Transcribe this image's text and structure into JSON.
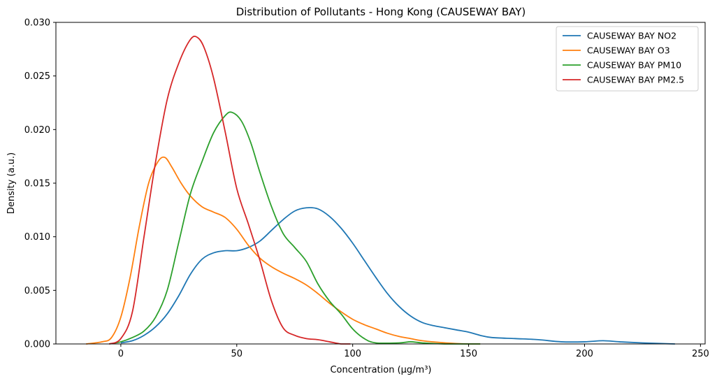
{
  "chart_data": {
    "type": "line",
    "title": "Distribution of Pollutants - Hong Kong (CAUSEWAY BAY)",
    "xlabel": "Concentration (µg/m³)",
    "ylabel": "Density (a.u.)",
    "xlim": [
      -28,
      252
    ],
    "ylim": [
      0,
      0.03
    ],
    "xticks": [
      0,
      50,
      100,
      150,
      200,
      250
    ],
    "xtick_labels": [
      "0",
      "50",
      "100",
      "150",
      "200",
      "250"
    ],
    "yticks": [
      0,
      0.005,
      0.01,
      0.015,
      0.02,
      0.025,
      0.03
    ],
    "ytick_labels": [
      "0.000",
      "0.005",
      "0.010",
      "0.015",
      "0.020",
      "0.025",
      "0.030"
    ],
    "grid": false,
    "legend_position": "top-right",
    "series": [
      {
        "name": "CAUSEWAY BAY NO2",
        "color": "#1f77b4",
        "points": [
          [
            0,
            0.0001
          ],
          [
            5,
            0.0003
          ],
          [
            10,
            0.0008
          ],
          [
            15,
            0.0016
          ],
          [
            20,
            0.0028
          ],
          [
            25,
            0.0045
          ],
          [
            30,
            0.0065
          ],
          [
            35,
            0.0079
          ],
          [
            40,
            0.0085
          ],
          [
            45,
            0.0087
          ],
          [
            50,
            0.0087
          ],
          [
            55,
            0.009
          ],
          [
            60,
            0.0096
          ],
          [
            65,
            0.0106
          ],
          [
            70,
            0.0116
          ],
          [
            75,
            0.0124
          ],
          [
            80,
            0.0127
          ],
          [
            85,
            0.0126
          ],
          [
            90,
            0.0119
          ],
          [
            95,
            0.0108
          ],
          [
            100,
            0.0094
          ],
          [
            105,
            0.0078
          ],
          [
            110,
            0.0062
          ],
          [
            115,
            0.0047
          ],
          [
            120,
            0.0035
          ],
          [
            125,
            0.0026
          ],
          [
            130,
            0.002
          ],
          [
            135,
            0.0017
          ],
          [
            140,
            0.0015
          ],
          [
            145,
            0.0013
          ],
          [
            150,
            0.0011
          ],
          [
            155,
            0.0008
          ],
          [
            160,
            0.0006
          ],
          [
            170,
            0.0005
          ],
          [
            180,
            0.0004
          ],
          [
            190,
            0.0002
          ],
          [
            200,
            0.0002
          ],
          [
            208,
            0.0003
          ],
          [
            215,
            0.0002
          ],
          [
            225,
            0.0001
          ],
          [
            239,
            0.0
          ]
        ]
      },
      {
        "name": "CAUSEWAY BAY O3",
        "color": "#ff7f0e",
        "points": [
          [
            -15,
            0.0
          ],
          [
            -8,
            0.0002
          ],
          [
            -4,
            0.0006
          ],
          [
            0,
            0.0025
          ],
          [
            4,
            0.0062
          ],
          [
            8,
            0.011
          ],
          [
            12,
            0.015
          ],
          [
            16,
            0.017
          ],
          [
            19,
            0.0174
          ],
          [
            22,
            0.0165
          ],
          [
            26,
            0.015
          ],
          [
            30,
            0.0138
          ],
          [
            35,
            0.0128
          ],
          [
            40,
            0.0123
          ],
          [
            45,
            0.0118
          ],
          [
            50,
            0.0107
          ],
          [
            55,
            0.0092
          ],
          [
            60,
            0.008
          ],
          [
            65,
            0.0072
          ],
          [
            70,
            0.0066
          ],
          [
            75,
            0.0061
          ],
          [
            80,
            0.0055
          ],
          [
            85,
            0.0047
          ],
          [
            90,
            0.0038
          ],
          [
            95,
            0.003
          ],
          [
            100,
            0.0023
          ],
          [
            105,
            0.0018
          ],
          [
            110,
            0.0014
          ],
          [
            115,
            0.001
          ],
          [
            120,
            0.0007
          ],
          [
            125,
            0.0005
          ],
          [
            130,
            0.0003
          ],
          [
            140,
            0.0001
          ],
          [
            150,
            0.0
          ],
          [
            155,
            0.0
          ]
        ]
      },
      {
        "name": "CAUSEWAY BAY PM10",
        "color": "#2ca02c",
        "points": [
          [
            -5,
            0.0
          ],
          [
            0,
            0.0002
          ],
          [
            5,
            0.0006
          ],
          [
            10,
            0.0012
          ],
          [
            15,
            0.0025
          ],
          [
            20,
            0.005
          ],
          [
            25,
            0.0095
          ],
          [
            30,
            0.014
          ],
          [
            35,
            0.017
          ],
          [
            40,
            0.0197
          ],
          [
            45,
            0.0213
          ],
          [
            48,
            0.0216
          ],
          [
            52,
            0.0208
          ],
          [
            56,
            0.0188
          ],
          [
            60,
            0.016
          ],
          [
            65,
            0.0128
          ],
          [
            70,
            0.0103
          ],
          [
            75,
            0.009
          ],
          [
            80,
            0.0077
          ],
          [
            85,
            0.0056
          ],
          [
            90,
            0.004
          ],
          [
            95,
            0.0028
          ],
          [
            100,
            0.0014
          ],
          [
            105,
            0.0005
          ],
          [
            110,
            0.0001
          ],
          [
            120,
            0.0001
          ],
          [
            125,
            0.0002
          ],
          [
            130,
            0.0001
          ],
          [
            140,
            0.0
          ],
          [
            155,
            0.0
          ]
        ]
      },
      {
        "name": "CAUSEWAY BAY PM2.5",
        "color": "#d62728",
        "points": [
          [
            -5,
            0.0
          ],
          [
            0,
            0.0005
          ],
          [
            5,
            0.003
          ],
          [
            10,
            0.01
          ],
          [
            15,
            0.017
          ],
          [
            20,
            0.0228
          ],
          [
            25,
            0.0262
          ],
          [
            30,
            0.0284
          ],
          [
            33,
            0.0286
          ],
          [
            36,
            0.0276
          ],
          [
            40,
            0.0248
          ],
          [
            45,
            0.0198
          ],
          [
            50,
            0.0145
          ],
          [
            55,
            0.0112
          ],
          [
            60,
            0.0078
          ],
          [
            65,
            0.004
          ],
          [
            70,
            0.0015
          ],
          [
            75,
            0.0008
          ],
          [
            80,
            0.0005
          ],
          [
            85,
            0.0004
          ],
          [
            90,
            0.0002
          ],
          [
            95,
            0.0
          ],
          [
            99,
            0.0
          ]
        ]
      }
    ]
  }
}
